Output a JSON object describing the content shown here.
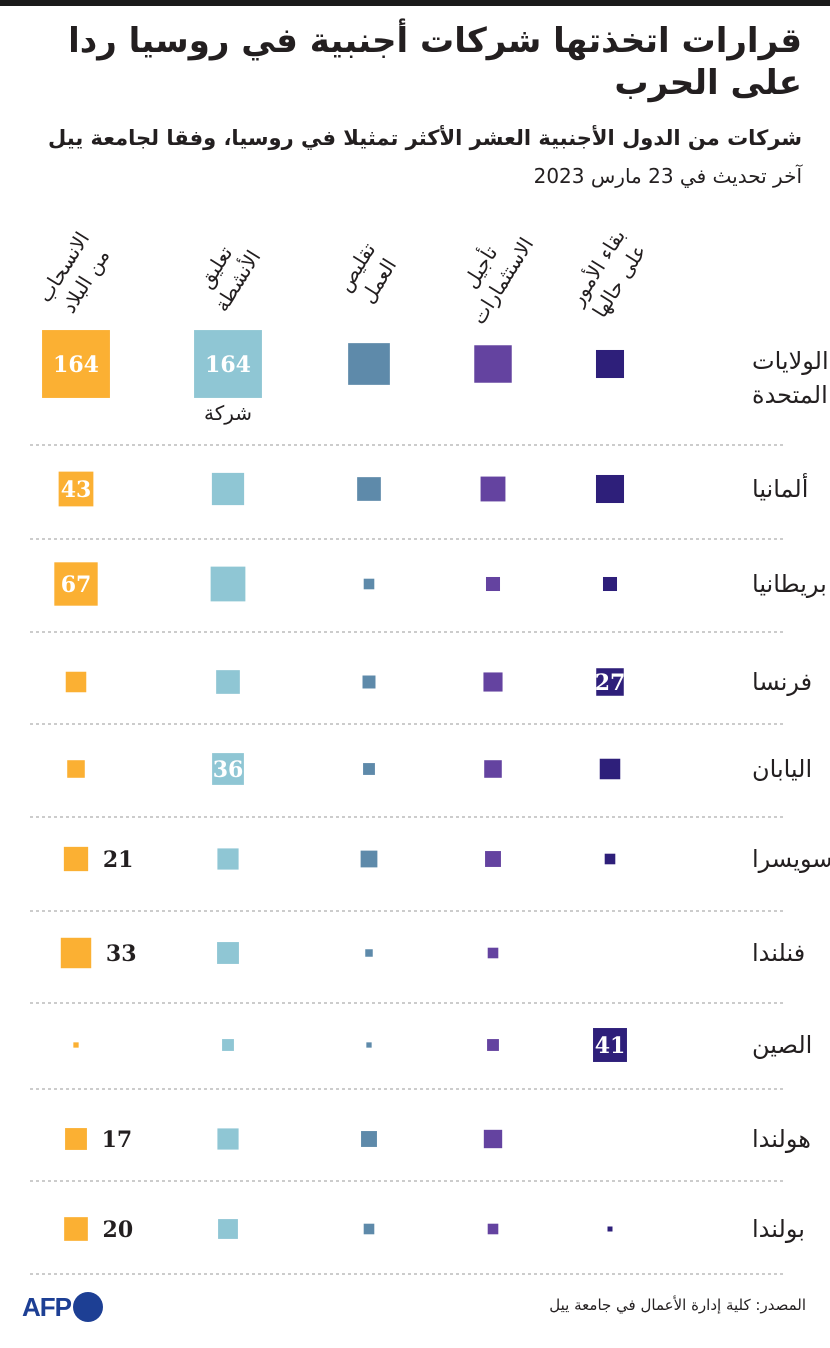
{
  "title": "قرارات اتخذتها شركات أجنبية في روسيا ردا على الحرب",
  "subtitle": "شركات من الدول الأجنبية العشر الأكثر تمثيلا في روسيا، وفقا لجامعة ييل",
  "updated": "آخر تحديث في 23 مارس 2023",
  "source": "المصدر: كلية إدارة الأعمال في جامعة ييل",
  "logo_text": "AFP",
  "chart_data": {
    "type": "proportional-square-matrix",
    "unit_note": "شركة",
    "columns": [
      {
        "key": "stay",
        "label_lines": [
          "بقاء الأمور",
          "على حالها"
        ],
        "color": "#2e1f7a"
      },
      {
        "key": "postpone",
        "label_lines": [
          "تأجيل",
          "الاستثمارات"
        ],
        "color": "#6443a0"
      },
      {
        "key": "reduce",
        "label_lines": [
          "تقليص",
          "العمل"
        ],
        "color": "#5e8aaa"
      },
      {
        "key": "suspend",
        "label_lines": [
          "تعليق",
          "الأنشطة"
        ],
        "color": "#8fc6d4"
      },
      {
        "key": "withdraw",
        "label_lines": [
          "الانسحاب",
          "من البلاد"
        ],
        "color": "#fbb033"
      }
    ],
    "rows": [
      {
        "country_lines": [
          "الولايات",
          "المتحدة"
        ],
        "values": {
          "stay": 28,
          "postpone": 50,
          "reduce": 62,
          "suspend": 164,
          "withdraw": 164
        },
        "labels": {
          "suspend": "164",
          "withdraw": "164"
        }
      },
      {
        "country_lines": [
          "ألمانيا"
        ],
        "values": {
          "stay": 28,
          "postpone": 22,
          "reduce": 20,
          "suspend": 37,
          "withdraw": 43
        },
        "labels": {
          "withdraw": "43"
        }
      },
      {
        "country_lines": [
          "بريطانيا"
        ],
        "values": {
          "stay": 7,
          "postpone": 7,
          "reduce": 4,
          "suspend": 43,
          "withdraw": 67
        },
        "labels": {
          "withdraw": "67"
        }
      },
      {
        "country_lines": [
          "فرنسا"
        ],
        "values": {
          "stay": 27,
          "postpone": 13,
          "reduce": 6,
          "suspend": 20,
          "withdraw": 15
        },
        "labels": {
          "stay": "27"
        }
      },
      {
        "country_lines": [
          "اليابان"
        ],
        "values": {
          "stay": 15,
          "postpone": 11,
          "reduce": 5,
          "suspend": 36,
          "withdraw": 11
        },
        "labels": {
          "suspend": "36"
        }
      },
      {
        "country_lines": [
          "سويسرا"
        ],
        "values": {
          "stay": 4,
          "postpone": 9,
          "reduce": 10,
          "suspend": 16,
          "withdraw": 21
        },
        "labels": {
          "withdraw": "21"
        },
        "label_outside": [
          "withdraw"
        ]
      },
      {
        "country_lines": [
          "فنلندا"
        ],
        "values": {
          "stay": 0,
          "postpone": 4,
          "reduce": 2,
          "suspend": 17,
          "withdraw": 33
        },
        "labels": {
          "withdraw": "33"
        },
        "label_outside": [
          "withdraw"
        ]
      },
      {
        "country_lines": [
          "الصين"
        ],
        "values": {
          "stay": 41,
          "postpone": 5,
          "reduce": 1,
          "suspend": 5,
          "withdraw": 1
        },
        "labels": {
          "stay": "41"
        }
      },
      {
        "country_lines": [
          "هولندا"
        ],
        "values": {
          "stay": 0,
          "postpone": 12,
          "reduce": 9,
          "suspend": 16,
          "withdraw": 17
        },
        "labels": {
          "withdraw": "17"
        },
        "label_outside": [
          "withdraw"
        ]
      },
      {
        "country_lines": [
          "بولندا"
        ],
        "values": {
          "stay": 0.5,
          "postpone": 4,
          "reduce": 4,
          "suspend": 14,
          "withdraw": 20
        },
        "labels": {
          "withdraw": "20"
        },
        "label_outside": [
          "withdraw"
        ]
      }
    ]
  }
}
